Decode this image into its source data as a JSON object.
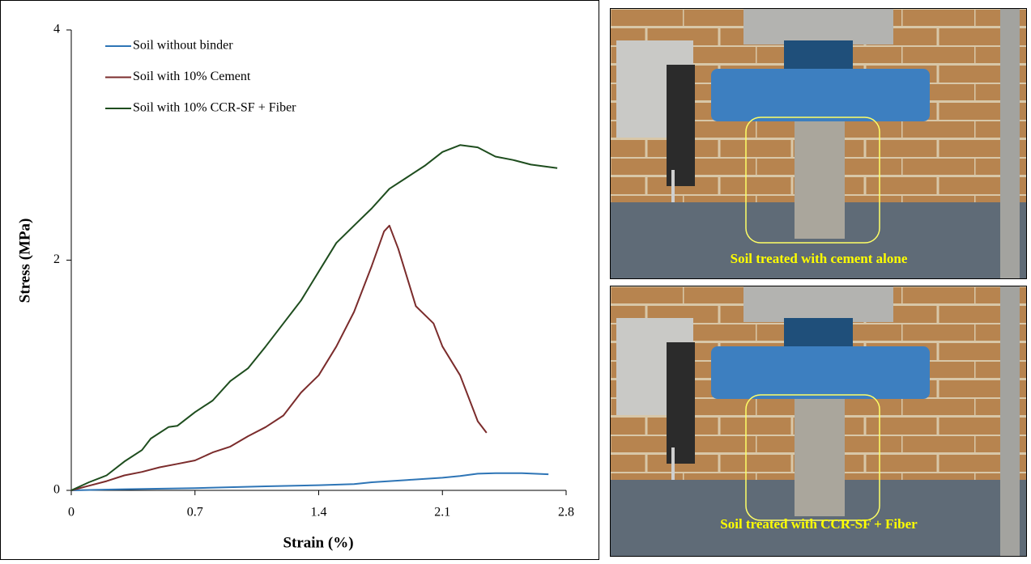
{
  "chart_data": {
    "type": "line",
    "xlabel": "Strain (%)",
    "ylabel": "Stress (MPa)",
    "xlim": [
      0,
      2.8
    ],
    "xticks": [
      0,
      0.7,
      1.4,
      2.1,
      2.8
    ],
    "ylim": [
      0,
      4
    ],
    "yticks": [
      0,
      2,
      4
    ],
    "grid": false,
    "legend": "upper left",
    "series": [
      {
        "name": "Soil without binder",
        "color": "#2e75b6",
        "x": [
          0,
          0.3,
          0.7,
          1.1,
          1.4,
          1.6,
          1.7,
          1.9,
          2.1,
          2.2,
          2.3,
          2.4,
          2.55,
          2.7
        ],
        "values": [
          0,
          0.01,
          0.02,
          0.035,
          0.045,
          0.055,
          0.07,
          0.09,
          0.11,
          0.125,
          0.145,
          0.15,
          0.15,
          0.14
        ]
      },
      {
        "name": "Soil with 10% Cement",
        "color": "#7b2c2c",
        "x": [
          0,
          0.1,
          0.2,
          0.3,
          0.4,
          0.5,
          0.6,
          0.7,
          0.8,
          0.9,
          1.0,
          1.1,
          1.2,
          1.3,
          1.4,
          1.5,
          1.6,
          1.7,
          1.77,
          1.8,
          1.85,
          1.9,
          1.95,
          2.05,
          2.1,
          2.2,
          2.3,
          2.35
        ],
        "values": [
          0,
          0.04,
          0.08,
          0.13,
          0.16,
          0.2,
          0.23,
          0.26,
          0.33,
          0.38,
          0.47,
          0.55,
          0.65,
          0.85,
          1.0,
          1.25,
          1.55,
          1.95,
          2.25,
          2.3,
          2.1,
          1.85,
          1.6,
          1.45,
          1.25,
          1.0,
          0.6,
          0.5
        ]
      },
      {
        "name": "Soil with 10% CCR-SF + Fiber",
        "color": "#1e4d1e",
        "x": [
          0,
          0.1,
          0.2,
          0.3,
          0.4,
          0.45,
          0.55,
          0.6,
          0.7,
          0.8,
          0.9,
          1.0,
          1.1,
          1.2,
          1.3,
          1.4,
          1.5,
          1.6,
          1.7,
          1.8,
          1.9,
          2.0,
          2.1,
          2.2,
          2.3,
          2.4,
          2.5,
          2.6,
          2.75
        ],
        "values": [
          0,
          0.07,
          0.13,
          0.25,
          0.35,
          0.45,
          0.55,
          0.56,
          0.68,
          0.78,
          0.95,
          1.06,
          1.25,
          1.45,
          1.65,
          1.9,
          2.15,
          2.3,
          2.45,
          2.62,
          2.72,
          2.82,
          2.94,
          3.0,
          2.98,
          2.9,
          2.87,
          2.83,
          2.8
        ]
      }
    ]
  },
  "photos": [
    {
      "caption": "Soil treated with cement alone"
    },
    {
      "caption": "Soil treated with CCR-SF + Fiber"
    }
  ]
}
